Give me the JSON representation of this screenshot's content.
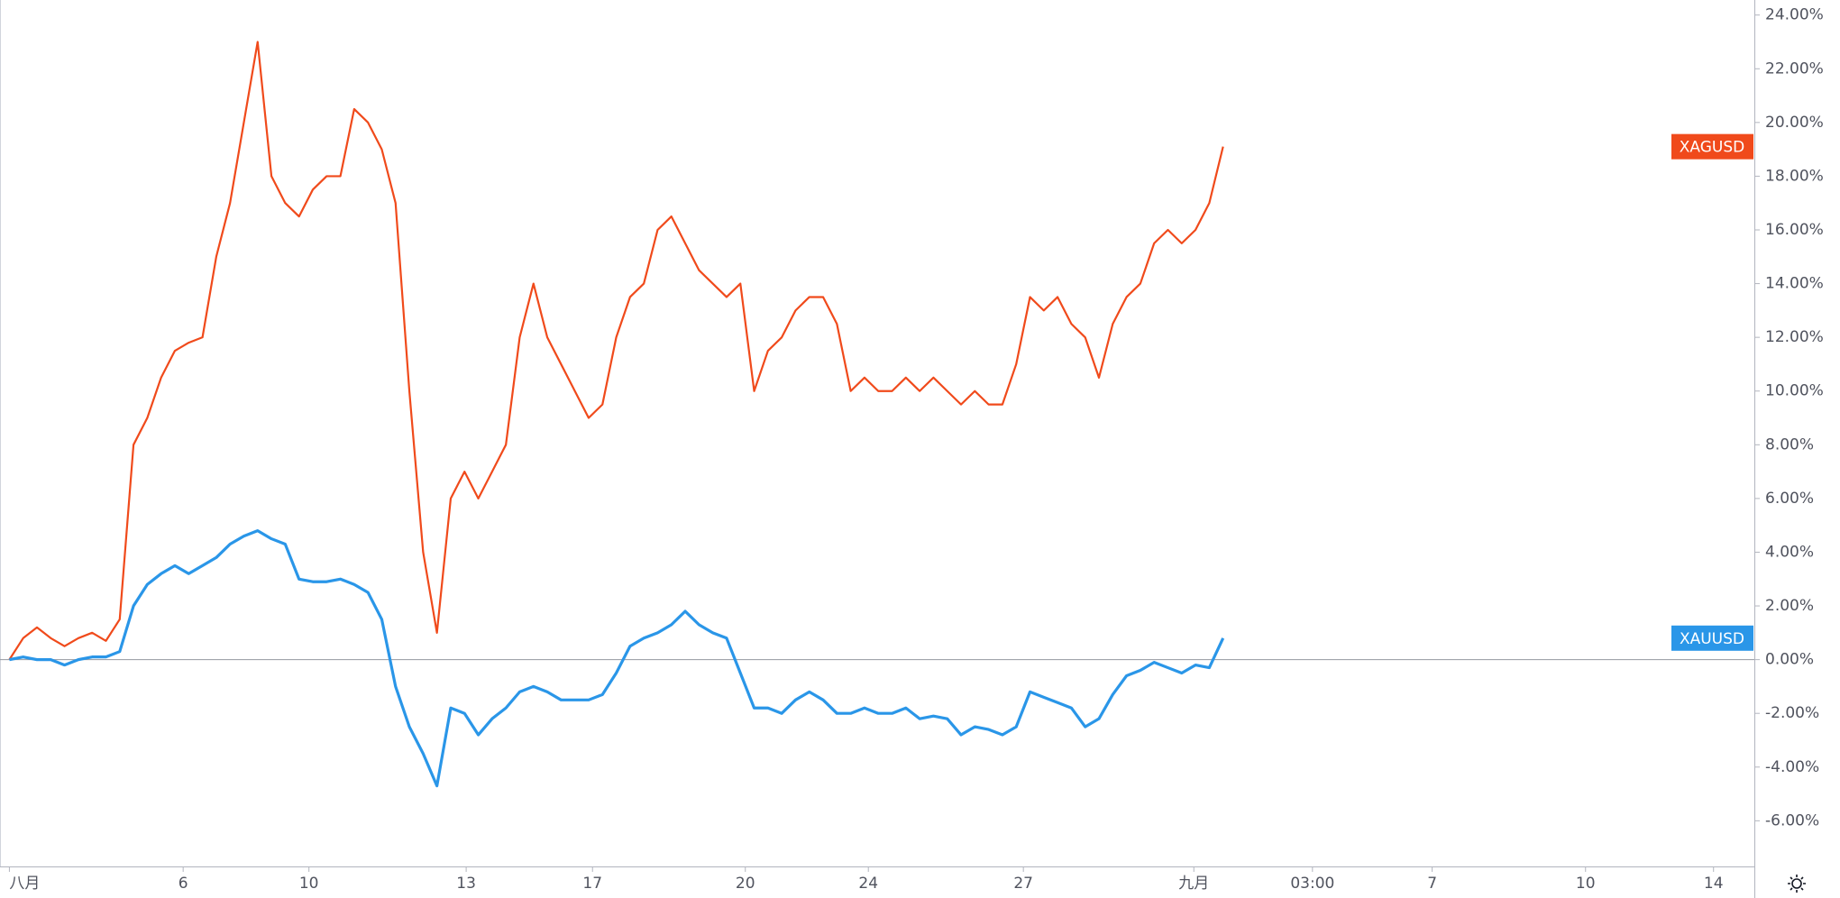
{
  "chart_data": {
    "type": "line",
    "x": [
      0,
      0.25,
      0.5,
      0.75,
      1,
      1.25,
      1.5,
      1.75,
      2,
      2.25,
      2.5,
      2.75,
      3,
      3.25,
      3.5,
      3.75,
      4,
      4.25,
      4.5,
      4.75,
      5,
      5.25,
      5.5,
      5.75,
      6,
      6.25,
      6.5,
      6.75,
      7,
      7.25,
      7.5,
      7.75,
      8,
      8.25,
      8.5,
      8.75,
      9,
      9.25,
      9.5,
      9.75,
      10,
      10.25,
      10.5,
      10.75,
      11,
      11.25,
      11.5,
      11.75,
      12,
      12.25,
      12.5,
      12.75,
      13,
      13.25,
      13.5,
      13.75,
      14,
      14.25,
      14.5,
      14.75,
      15,
      15.25,
      15.5,
      15.75,
      16,
      16.25,
      16.5,
      16.75,
      17,
      17.25,
      17.5,
      17.75,
      18,
      18.25,
      18.5,
      18.75,
      19,
      19.25,
      19.5,
      19.75,
      20,
      20.25,
      20.5,
      20.75,
      21,
      21.25,
      21.5,
      21.75,
      22
    ],
    "series": [
      {
        "name": "XAGUSD",
        "color": "#f04a1b",
        "values": [
          0,
          0.8,
          1.2,
          0.8,
          0.5,
          0.8,
          1.0,
          0.7,
          1.5,
          8,
          9,
          10.5,
          11.5,
          11.8,
          12,
          15,
          17,
          20,
          23,
          18,
          17,
          16.5,
          17.5,
          18,
          18,
          20.5,
          20,
          19,
          17,
          10,
          4,
          1,
          6,
          7,
          6,
          7,
          8,
          12,
          14,
          12,
          11,
          10,
          9,
          9.5,
          12,
          13.5,
          14,
          16,
          16.5,
          15.5,
          14.5,
          14,
          13.5,
          14,
          10,
          11.5,
          12,
          13,
          13.5,
          13.5,
          12.5,
          10,
          10.5,
          10,
          10,
          10.5,
          10,
          10.5,
          10,
          9.5,
          10,
          9.5,
          9.5,
          11,
          13.5,
          13,
          13.5,
          12.5,
          12,
          10.5,
          12.5,
          13.5,
          14,
          15.5,
          16,
          15.5,
          16,
          17,
          19.1
        ]
      },
      {
        "name": "XAUUSD",
        "color": "#2a96e8",
        "values": [
          0,
          0.1,
          0,
          0,
          -0.2,
          0,
          0.1,
          0.1,
          0.3,
          2,
          2.8,
          3.2,
          3.5,
          3.2,
          3.5,
          3.8,
          4.3,
          4.6,
          4.8,
          4.5,
          4.3,
          3,
          2.9,
          2.9,
          3,
          2.8,
          2.5,
          1.5,
          -1,
          -2.5,
          -3.5,
          -4.7,
          -1.8,
          -2,
          -2.8,
          -2.2,
          -1.8,
          -1.2,
          -1,
          -1.2,
          -1.5,
          -1.5,
          -1.5,
          -1.3,
          -0.5,
          0.5,
          0.8,
          1,
          1.3,
          1.8,
          1.3,
          1,
          0.8,
          -0.5,
          -1.8,
          -1.8,
          -2,
          -1.5,
          -1.2,
          -1.5,
          -2,
          -2,
          -1.8,
          -2,
          -2,
          -1.8,
          -2.2,
          -2.1,
          -2.2,
          -2.8,
          -2.5,
          -2.6,
          -2.8,
          -2.5,
          -1.2,
          -1.4,
          -1.6,
          -1.8,
          -2.5,
          -2.2,
          -1.3,
          -0.6,
          -0.4,
          -0.1,
          -0.3,
          -0.5,
          -0.2,
          -0.3,
          0.8
        ]
      }
    ],
    "baseline": 0,
    "xlim": [
      -0.17,
      31.63
    ],
    "xticks": [
      {
        "value": 0,
        "label": "八月"
      },
      {
        "value": 3.15,
        "label": "6"
      },
      {
        "value": 5.43,
        "label": "10"
      },
      {
        "value": 8.28,
        "label": "13"
      },
      {
        "value": 10.57,
        "label": "17"
      },
      {
        "value": 13.34,
        "label": "20"
      },
      {
        "value": 15.57,
        "label": "24"
      },
      {
        "value": 18.38,
        "label": "27"
      },
      {
        "value": 21.47,
        "label": "九月"
      },
      {
        "value": 23.62,
        "label": "03:00"
      },
      {
        "value": 25.79,
        "label": "7"
      },
      {
        "value": 28.57,
        "label": "10"
      },
      {
        "value": 30.89,
        "label": "14"
      }
    ],
    "ylim": [
      -7.7,
      24.56
    ],
    "yticks": [
      {
        "value": -6,
        "label": "-6.00%"
      },
      {
        "value": -4,
        "label": "-4.00%"
      },
      {
        "value": -2,
        "label": "-2.00%"
      },
      {
        "value": 0,
        "label": "0.00%"
      },
      {
        "value": 2,
        "label": "2.00%"
      },
      {
        "value": 4,
        "label": "4.00%"
      },
      {
        "value": 6,
        "label": "6.00%"
      },
      {
        "value": 8,
        "label": "8.00%"
      },
      {
        "value": 10,
        "label": "10.00%"
      },
      {
        "value": 12,
        "label": "12.00%"
      },
      {
        "value": 14,
        "label": "14.00%"
      },
      {
        "value": 16,
        "label": "16.00%"
      },
      {
        "value": 18,
        "label": "18.00%"
      },
      {
        "value": 20,
        "label": "20.00%"
      },
      {
        "value": 22,
        "label": "22.00%"
      },
      {
        "value": 24,
        "label": "24.00%"
      }
    ]
  }
}
